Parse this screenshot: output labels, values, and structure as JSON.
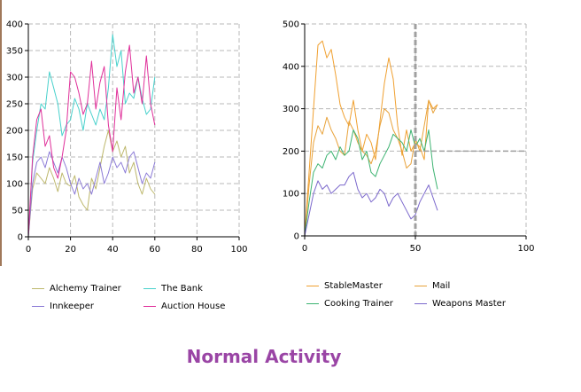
{
  "caption": "Normal Activity",
  "chart_data": [
    {
      "type": "line",
      "xlim": [
        0,
        100
      ],
      "ylim": [
        0,
        400
      ],
      "x_ticks": [
        0,
        20,
        40,
        60,
        80,
        100
      ],
      "y_ticks": [
        0,
        50,
        100,
        150,
        200,
        250,
        300,
        350,
        400
      ],
      "grid": true,
      "legend_position": "bottom",
      "series": [
        {
          "name": "Alchemy Trainer",
          "color": "#bdb76b",
          "x": [
            0,
            2,
            4,
            6,
            8,
            10,
            12,
            14,
            16,
            18,
            20,
            22,
            24,
            26,
            28,
            30,
            32,
            34,
            36,
            38,
            40,
            42,
            44,
            46,
            48,
            50,
            52,
            54,
            56,
            58,
            60
          ],
          "y": [
            0,
            90,
            120,
            110,
            100,
            130,
            110,
            85,
            120,
            100,
            95,
            115,
            75,
            60,
            50,
            110,
            90,
            130,
            170,
            200,
            160,
            180,
            150,
            170,
            120,
            140,
            100,
            80,
            110,
            90,
            80
          ]
        },
        {
          "name": "The Bank",
          "color": "#48d1cc",
          "x": [
            0,
            2,
            4,
            6,
            8,
            10,
            12,
            14,
            16,
            18,
            20,
            22,
            24,
            26,
            28,
            30,
            32,
            34,
            36,
            38,
            40,
            42,
            44,
            46,
            48,
            50,
            52,
            54,
            56,
            58,
            60
          ],
          "y": [
            0,
            140,
            200,
            250,
            240,
            310,
            280,
            250,
            190,
            210,
            220,
            260,
            240,
            200,
            250,
            230,
            210,
            240,
            220,
            280,
            380,
            320,
            350,
            250,
            270,
            260,
            300,
            260,
            230,
            240,
            300
          ]
        },
        {
          "name": "Innkeeper",
          "color": "#8b7ad6",
          "x": [
            0,
            2,
            4,
            6,
            8,
            10,
            12,
            14,
            16,
            18,
            20,
            22,
            24,
            26,
            28,
            30,
            32,
            34,
            36,
            38,
            40,
            42,
            44,
            46,
            48,
            50,
            52,
            54,
            56,
            58,
            60
          ],
          "y": [
            0,
            100,
            140,
            150,
            130,
            160,
            140,
            120,
            150,
            130,
            100,
            80,
            110,
            90,
            100,
            80,
            110,
            140,
            100,
            120,
            150,
            130,
            140,
            120,
            150,
            160,
            130,
            100,
            120,
            110,
            140
          ]
        },
        {
          "name": "Auction House",
          "color": "#e0309a",
          "x": [
            0,
            2,
            4,
            6,
            8,
            10,
            12,
            14,
            16,
            18,
            20,
            22,
            24,
            26,
            28,
            30,
            32,
            34,
            36,
            38,
            40,
            42,
            44,
            46,
            48,
            50,
            52,
            54,
            56,
            58,
            60
          ],
          "y": [
            0,
            150,
            220,
            240,
            170,
            190,
            130,
            110,
            150,
            200,
            310,
            300,
            270,
            230,
            250,
            330,
            240,
            290,
            320,
            210,
            160,
            280,
            220,
            310,
            360,
            270,
            300,
            250,
            340,
            250,
            210
          ]
        }
      ]
    },
    {
      "type": "line",
      "xlim": [
        0,
        100
      ],
      "ylim": [
        0,
        500
      ],
      "x_ticks": [
        0,
        50,
        100
      ],
      "y_ticks": [
        0,
        100,
        200,
        300,
        400,
        500
      ],
      "grid": true,
      "legend_position": "bottom",
      "series": [
        {
          "name": "StableMaster",
          "color": "#f0a030",
          "x": [
            0,
            2,
            4,
            6,
            8,
            10,
            12,
            14,
            16,
            18,
            20,
            22,
            24,
            26,
            28,
            30,
            32,
            34,
            36,
            38,
            40,
            42,
            44,
            46,
            48,
            50,
            52,
            54,
            56,
            58,
            60
          ],
          "y": [
            0,
            150,
            300,
            450,
            460,
            420,
            440,
            380,
            310,
            280,
            260,
            320,
            250,
            200,
            240,
            220,
            180,
            270,
            360,
            420,
            370,
            260,
            190,
            250,
            200,
            220,
            210,
            180,
            320,
            300,
            310
          ]
        },
        {
          "name": "Mail",
          "color": "#e8a23a",
          "x": [
            0,
            2,
            4,
            6,
            8,
            10,
            12,
            14,
            16,
            18,
            20,
            22,
            24,
            26,
            28,
            30,
            32,
            34,
            36,
            38,
            40,
            42,
            44,
            46,
            48,
            50,
            52,
            54,
            56,
            58,
            60
          ],
          "y": [
            0,
            120,
            220,
            260,
            240,
            280,
            250,
            230,
            200,
            190,
            270,
            250,
            220,
            200,
            190,
            170,
            200,
            260,
            300,
            290,
            250,
            230,
            200,
            160,
            170,
            230,
            200,
            260,
            320,
            290,
            310
          ]
        },
        {
          "name": "Cooking Trainer",
          "color": "#3cb371",
          "x": [
            0,
            2,
            4,
            6,
            8,
            10,
            12,
            14,
            16,
            18,
            20,
            22,
            24,
            26,
            28,
            30,
            32,
            34,
            36,
            38,
            40,
            42,
            44,
            46,
            48,
            50,
            52,
            54,
            56,
            58,
            60
          ],
          "y": [
            0,
            80,
            150,
            170,
            160,
            190,
            200,
            180,
            210,
            190,
            200,
            250,
            230,
            180,
            200,
            150,
            140,
            170,
            190,
            210,
            240,
            230,
            220,
            200,
            250,
            210,
            230,
            200,
            250,
            160,
            110
          ]
        },
        {
          "name": "Weapons Master",
          "color": "#7b68cc",
          "x": [
            0,
            2,
            4,
            6,
            8,
            10,
            12,
            14,
            16,
            18,
            20,
            22,
            24,
            26,
            28,
            30,
            32,
            34,
            36,
            38,
            40,
            42,
            44,
            46,
            48,
            50,
            52,
            54,
            56,
            58,
            60
          ],
          "y": [
            0,
            50,
            100,
            130,
            110,
            120,
            100,
            110,
            120,
            120,
            140,
            150,
            110,
            90,
            100,
            80,
            90,
            110,
            100,
            70,
            90,
            100,
            80,
            60,
            40,
            50,
            80,
            100,
            120,
            90,
            60
          ]
        }
      ]
    }
  ]
}
